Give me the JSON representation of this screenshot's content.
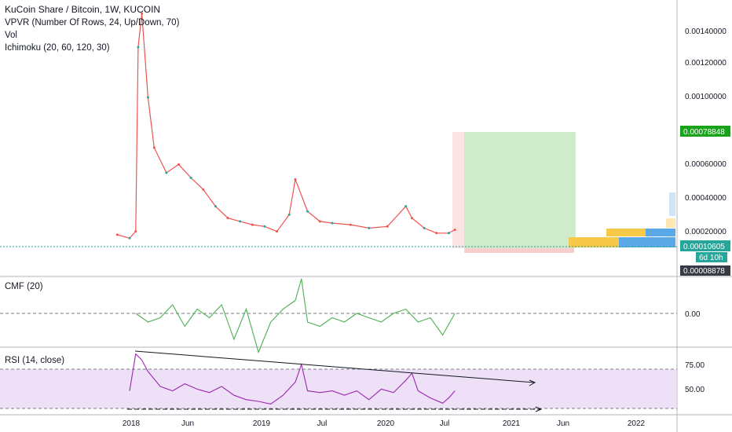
{
  "symbol_title": "KuCoin Share / Bitcoin, 1W, KUCOIN",
  "indicators": [
    "VPVR (Number Of Rows, 24, Up/Down, 70)",
    "Vol",
    "Ichimoku (20, 60, 120, 30)"
  ],
  "panes": {
    "cmf_label": "CMF (20)",
    "rsi_label": "RSI (14, close)"
  },
  "price_axis": {
    "ticks": [
      "0.00140000",
      "0.00120000",
      "0.00100000",
      "0.00080000",
      "0.00060000",
      "0.00040000",
      "0.00020000"
    ]
  },
  "price_tags": {
    "target": "0.00078848",
    "last": "0.00010605",
    "countdown": "6d 10h",
    "low": "0.00008878"
  },
  "cmf_axis": {
    "ticks": [
      "0.00"
    ]
  },
  "rsi_axis": {
    "ticks": [
      "75.00",
      "50.00"
    ]
  },
  "time_axis": {
    "ticks": [
      "2018",
      "Jun",
      "2019",
      "Jul",
      "2020",
      "Jul",
      "2021",
      "Jun",
      "2022"
    ]
  },
  "colors": {
    "up": "#26a69a",
    "down": "#ef5350",
    "rsi": "#9c27b0",
    "cmf": "#4caf50",
    "target_tag": "#1aa31a",
    "last_tag": "#26a69a"
  },
  "chart_data": [
    {
      "type": "line",
      "title": "KuCoin Share / Bitcoin, 1W, KUCOIN",
      "x_ticks": [
        "2018",
        "Jun",
        "2019",
        "Jul",
        "2020",
        "Jul",
        "2021",
        "Jun",
        "2022"
      ],
      "ylim": [
        0,
        0.0015
      ],
      "x": [
        2017.85,
        2017.95,
        2018.0,
        2018.02,
        2018.05,
        2018.1,
        2018.15,
        2018.25,
        2018.35,
        2018.45,
        2018.55,
        2018.65,
        2018.75,
        2018.85,
        2018.95,
        2019.05,
        2019.15,
        2019.25,
        2019.3,
        2019.4,
        2019.5,
        2019.6,
        2019.75,
        2019.9,
        2020.05,
        2020.2,
        2020.25,
        2020.35,
        2020.45,
        2020.55,
        2020.6
      ],
      "series": [
        {
          "values": [
            8e-05,
            6e-05,
            0.0001,
            0.0012,
            0.0014,
            0.0009,
            0.0006,
            0.00045,
            0.0005,
            0.00042,
            0.00035,
            0.00025,
            0.00018,
            0.00016,
            0.00014,
            0.00013,
            0.0001,
            0.0002,
            0.00041,
            0.00022,
            0.00016,
            0.00015,
            0.00014,
            0.00012,
            0.00013,
            0.00025,
            0.00018,
            0.00012,
            9e-05,
            9e-05,
            0.00011
          ]
        }
      ],
      "annotations": [
        "0.00078848",
        "0.00010605",
        "6d 10h",
        "0.00008878"
      ]
    },
    {
      "type": "line",
      "title": "CMF (20)",
      "ylim": [
        -0.6,
        0.4
      ],
      "x": [
        2018.0,
        2018.1,
        2018.2,
        2018.3,
        2018.4,
        2018.5,
        2018.6,
        2018.7,
        2018.8,
        2018.9,
        2019.0,
        2019.1,
        2019.2,
        2019.3,
        2019.35,
        2019.4,
        2019.5,
        2019.6,
        2019.7,
        2019.8,
        2019.9,
        2020.0,
        2020.1,
        2020.2,
        2020.3,
        2020.4,
        2020.5,
        2020.6
      ],
      "series": [
        {
          "values": [
            0.0,
            -0.1,
            -0.05,
            0.1,
            -0.15,
            0.05,
            -0.05,
            0.1,
            -0.3,
            0.05,
            -0.45,
            -0.1,
            0.05,
            0.15,
            0.4,
            -0.1,
            -0.15,
            -0.05,
            -0.1,
            0.0,
            -0.05,
            -0.1,
            0.0,
            0.05,
            -0.1,
            -0.05,
            -0.25,
            0.0
          ]
        }
      ],
      "y_ticks": [
        "0.00"
      ]
    },
    {
      "type": "line",
      "title": "RSI (14, close)",
      "ylim": [
        30,
        95
      ],
      "x": [
        2017.95,
        2018.0,
        2018.05,
        2018.1,
        2018.2,
        2018.3,
        2018.4,
        2018.5,
        2018.6,
        2018.7,
        2018.8,
        2018.9,
        2019.0,
        2019.1,
        2019.2,
        2019.3,
        2019.35,
        2019.4,
        2019.5,
        2019.6,
        2019.7,
        2019.8,
        2019.9,
        2020.0,
        2020.1,
        2020.2,
        2020.25,
        2020.3,
        2020.4,
        2020.5,
        2020.55,
        2020.6
      ],
      "series": [
        {
          "values": [
            50,
            92,
            85,
            72,
            55,
            50,
            58,
            52,
            48,
            55,
            45,
            40,
            38,
            35,
            45,
            60,
            80,
            50,
            48,
            50,
            45,
            50,
            40,
            52,
            48,
            62,
            70,
            50,
            42,
            36,
            42,
            50
          ]
        }
      ],
      "y_ticks": [
        "75.00",
        "50.00"
      ]
    }
  ]
}
